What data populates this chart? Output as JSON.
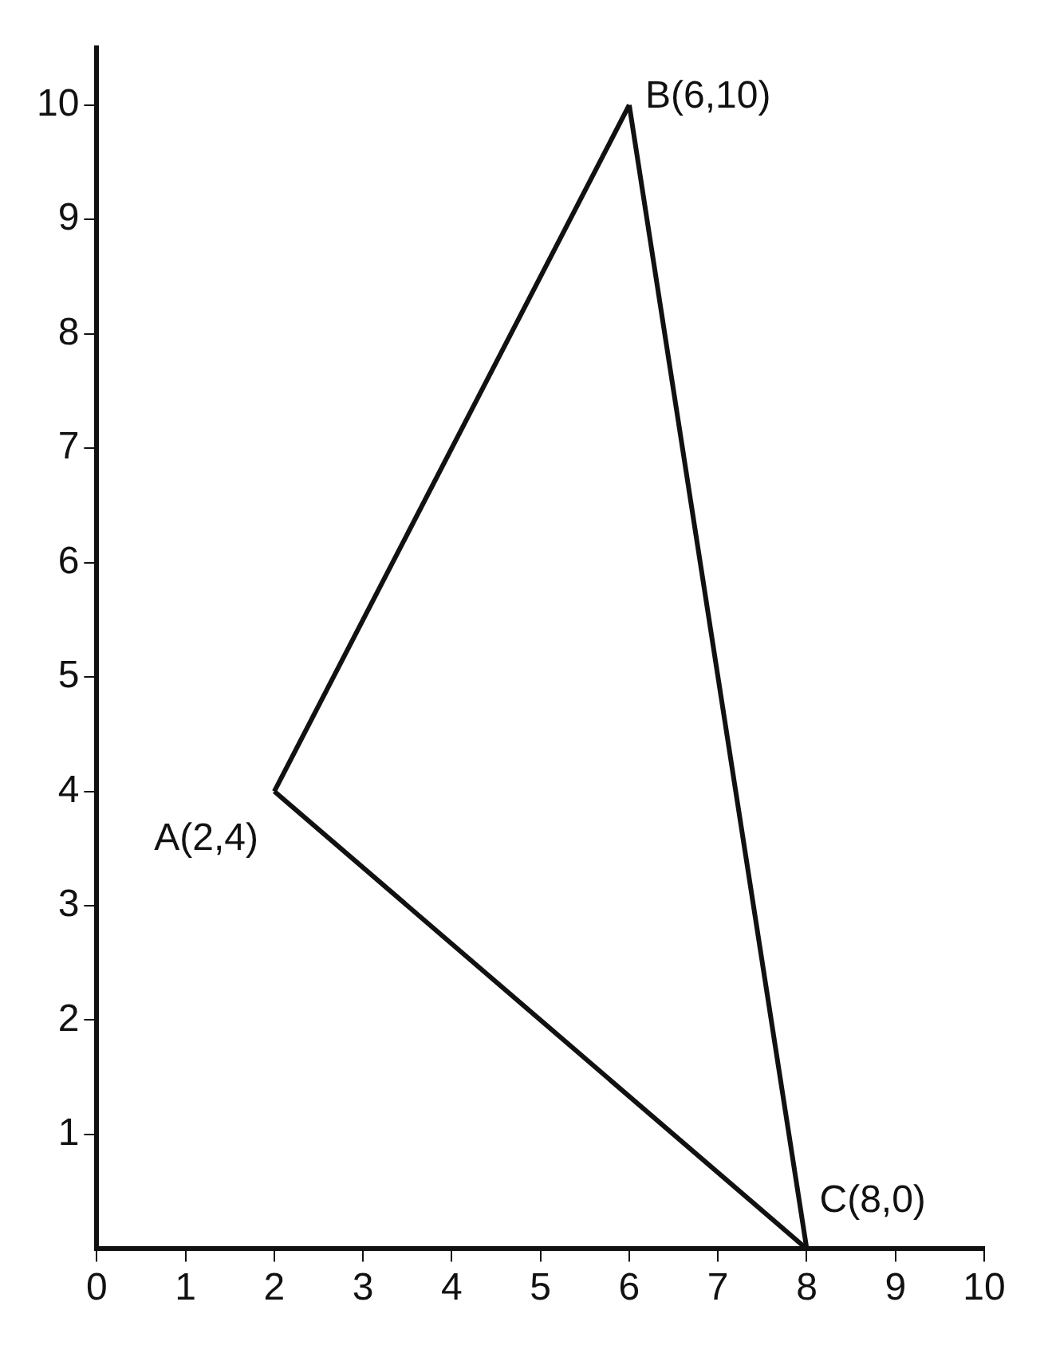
{
  "chart_data": {
    "type": "line",
    "series": [
      {
        "color": "#111111",
        "x": [
          2,
          6
        ],
        "values": [
          4,
          10
        ]
      },
      {
        "color": "#111111",
        "x": [
          6,
          8
        ],
        "values": [
          10,
          0
        ]
      },
      {
        "color": "#111111",
        "x": [
          2,
          8
        ],
        "values": [
          4,
          0
        ]
      }
    ],
    "xlim": [
      0,
      10
    ],
    "ylim": [
      0,
      10.5
    ],
    "xticks": [
      0,
      1,
      2,
      3,
      4,
      5,
      6,
      7,
      8,
      9,
      10
    ],
    "yticks": [
      1,
      2,
      3,
      4,
      5,
      6,
      7,
      8,
      9,
      10
    ],
    "annotations": [
      {
        "text": "A(2,4)",
        "x": 2,
        "y": 4
      },
      {
        "text": "B(6,10)",
        "x": 6,
        "y": 10
      },
      {
        "text": "C(8,0)",
        "x": 8,
        "y": 0
      }
    ],
    "grid": false,
    "legend": false,
    "marker": "none",
    "line_style": "solid"
  }
}
